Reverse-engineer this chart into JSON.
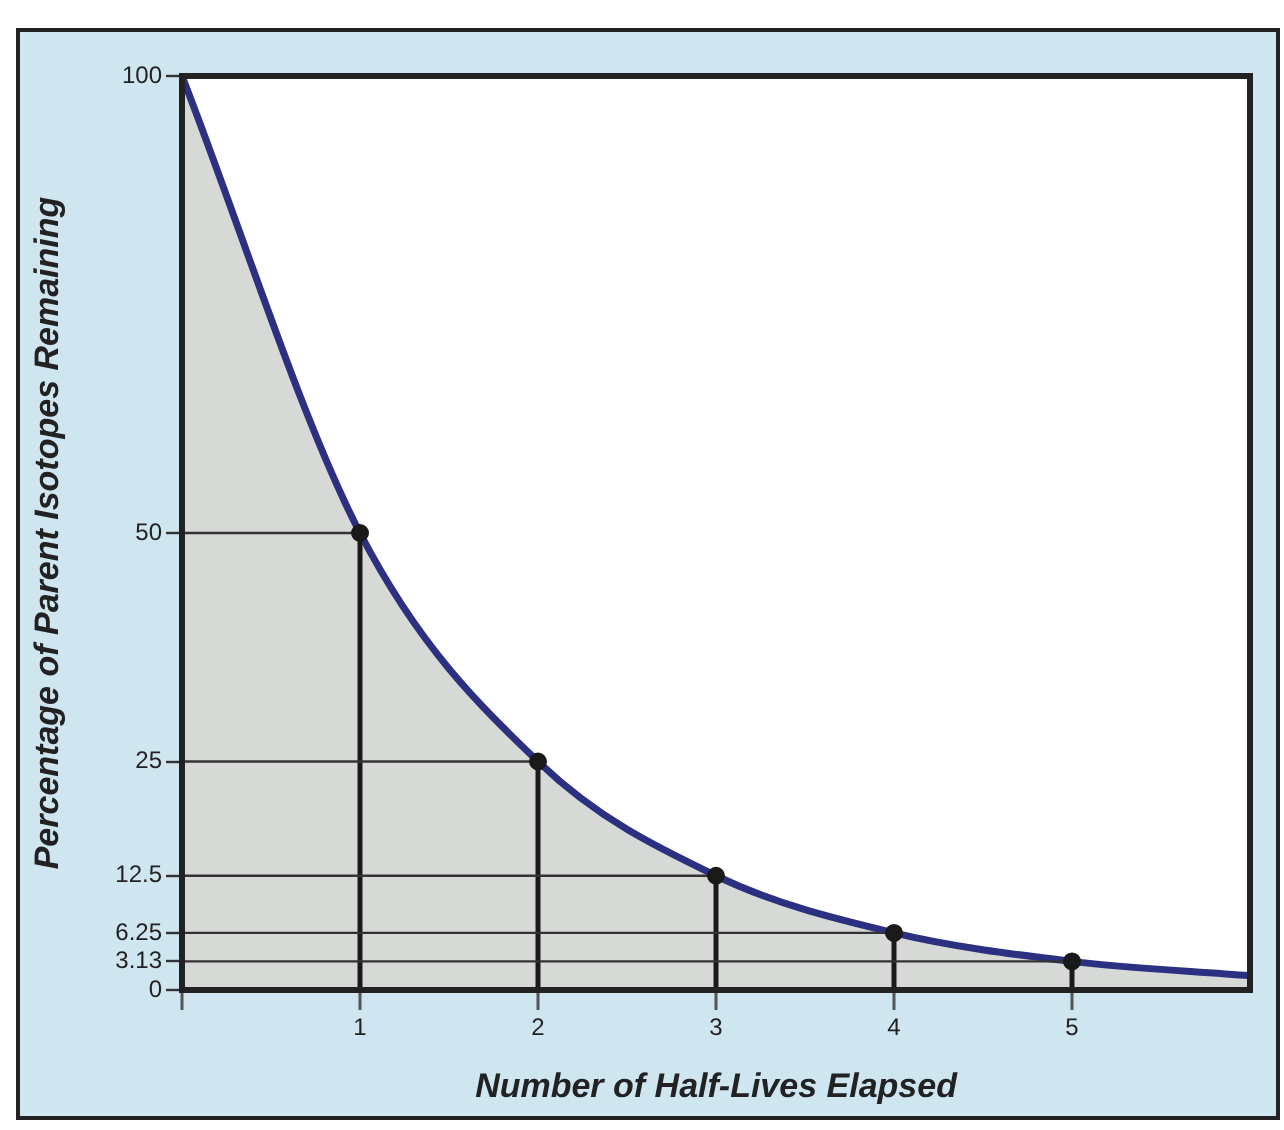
{
  "chart_data": {
    "type": "area",
    "xlabel": "Number of Half-Lives Elapsed",
    "ylabel": "Percentage of Parent Isotopes Remaining",
    "x": [
      0,
      1,
      2,
      3,
      4,
      5,
      6
    ],
    "series": [
      {
        "color": "#2b3080",
        "values": [
          100,
          50,
          25,
          12.5,
          6.25,
          3.13,
          1.56
        ],
        "marker": "none"
      },
      {
        "type": "line",
        "color": "#333333",
        "x": [
          0,
          1
        ],
        "values": [
          50,
          50
        ],
        "marker": "none"
      },
      {
        "type": "line",
        "color": "#333333",
        "x": [
          0,
          2
        ],
        "values": [
          25,
          25
        ],
        "marker": "none"
      },
      {
        "type": "line",
        "color": "#333333",
        "x": [
          0,
          3
        ],
        "values": [
          12.5,
          12.5
        ],
        "marker": "none"
      },
      {
        "type": "line",
        "color": "#333333",
        "x": [
          0,
          4
        ],
        "values": [
          6.25,
          6.25
        ],
        "marker": "none"
      },
      {
        "type": "line",
        "color": "#333333",
        "x": [
          0,
          5
        ],
        "values": [
          3.13,
          3.13
        ],
        "marker": "none"
      },
      {
        "type": "line",
        "color": "#1a1a1a",
        "x": [
          1,
          1
        ],
        "values": [
          0,
          50
        ],
        "marker": "none"
      },
      {
        "type": "line",
        "color": "#1a1a1a",
        "x": [
          2,
          2
        ],
        "values": [
          0,
          25
        ],
        "marker": "none"
      },
      {
        "type": "line",
        "color": "#1a1a1a",
        "x": [
          3,
          3
        ],
        "values": [
          0,
          12.5
        ],
        "marker": "none"
      },
      {
        "type": "line",
        "color": "#1a1a1a",
        "x": [
          4,
          4
        ],
        "values": [
          0,
          6.25
        ],
        "marker": "none"
      },
      {
        "type": "line",
        "color": "#1a1a1a",
        "x": [
          5,
          5
        ],
        "values": [
          0,
          3.13
        ],
        "marker": "none"
      },
      {
        "type": "scatter",
        "color": "#1a1a1a",
        "x": [
          1,
          2,
          3,
          4,
          5
        ],
        "values": [
          50,
          25,
          12.5,
          6.25,
          3.13
        ],
        "marker": "circle"
      }
    ],
    "xlim": [
      0,
      6
    ],
    "xticks": [
      {
        "value": 0,
        "label": null
      },
      1,
      2,
      3,
      4,
      5
    ],
    "ylim": [
      0,
      100
    ],
    "yticks": [
      0,
      3.13,
      6.25,
      12.5,
      25,
      50,
      100
    ],
    "legend": false
  }
}
